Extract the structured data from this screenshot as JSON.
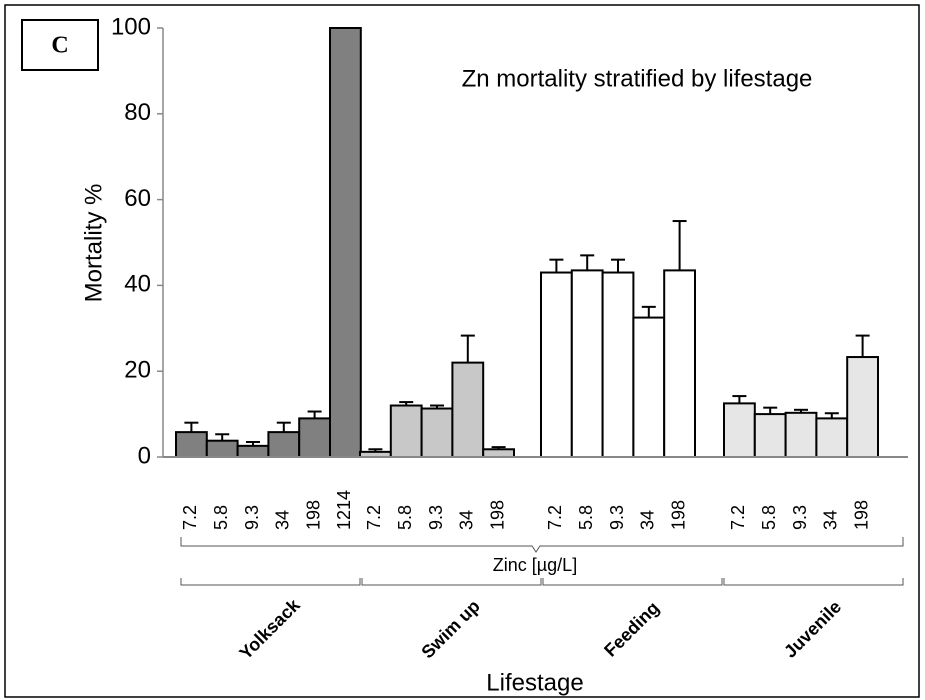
{
  "chart_data": {
    "type": "bar",
    "panel_label": "C",
    "title": "Zn mortality stratified by lifestage",
    "y_label": "Mortality %",
    "x_label": "Zinc [µg/L]",
    "group_axis_label": "Lifestage",
    "ylim": [
      0,
      100
    ],
    "yticks": [
      0,
      20,
      40,
      60,
      80,
      100
    ],
    "groups": [
      {
        "name": "Yolksack",
        "color": "#808080",
        "categories": [
          "7.2",
          "5.8",
          "9.3",
          "34",
          "198",
          "1214"
        ],
        "values": [
          5.8,
          3.8,
          2.6,
          5.8,
          9,
          100
        ],
        "errors": [
          2.2,
          1.5,
          0.9,
          2.2,
          1.6,
          null
        ]
      },
      {
        "name": "Swim up",
        "color": "#c8c8c8",
        "categories": [
          "7.2",
          "5.8",
          "9.3",
          "34",
          "198"
        ],
        "values": [
          1.2,
          12,
          11.3,
          22,
          1.8
        ],
        "errors": [
          0.6,
          0.8,
          0.7,
          6.3,
          0.5
        ]
      },
      {
        "name": "Feeding",
        "color": "#ffffff",
        "categories": [
          "7.2",
          "5.8",
          "9.3",
          "34",
          "198"
        ],
        "values": [
          43,
          43.5,
          43,
          32.5,
          43.5
        ],
        "errors": [
          3,
          3.5,
          3,
          2.5,
          11.5
        ]
      },
      {
        "name": "Juvenile",
        "color": "#e6e6e6",
        "categories": [
          "7.2",
          "5.8",
          "9.3",
          "34",
          "198"
        ],
        "values": [
          12.5,
          10,
          10.3,
          9,
          23.3
        ],
        "errors": [
          1.7,
          1.5,
          0.7,
          1.2,
          5
        ]
      }
    ]
  }
}
